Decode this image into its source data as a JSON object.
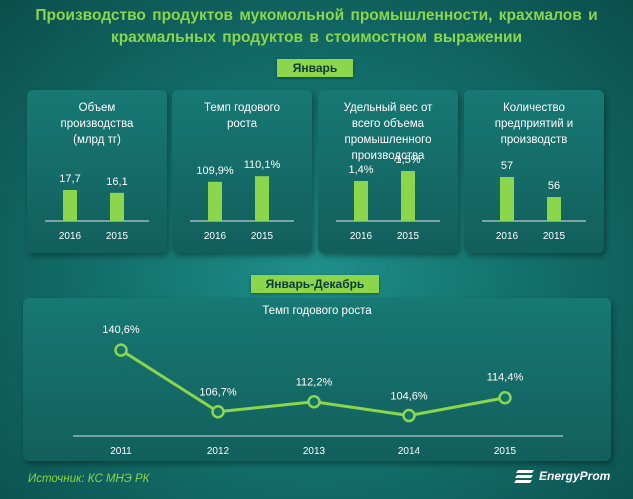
{
  "header": {
    "title_line1": "Производство продуктов мукомольной промышленности, крахмалов и",
    "title_line2": "крахмальных продуктов в стоимостном выражении"
  },
  "section_january": {
    "label": "Январь"
  },
  "section_year": {
    "label": "Январь-Декабрь"
  },
  "colors": {
    "accent": "#8bd64a",
    "bar": "#8bd64a",
    "background": "#13716d"
  },
  "chart_data": [
    {
      "type": "bar",
      "title_lines": [
        "Объем",
        "производства",
        "(млрд тг)"
      ],
      "categories": [
        "2016",
        "2015"
      ],
      "values": [
        17.7,
        16.1
      ],
      "labels": [
        "17,7",
        "16,1"
      ],
      "ylim": [
        0,
        40
      ]
    },
    {
      "type": "bar",
      "title_lines": [
        "Темп годового",
        "роста"
      ],
      "categories": [
        "2016",
        "2015"
      ],
      "values": [
        109.9,
        110.1
      ],
      "labels": [
        "109,9%",
        "110,1%"
      ],
      "ylim": [
        108.5,
        111
      ]
    },
    {
      "type": "bar",
      "title_lines": [
        "Удельный вес от",
        "всего объема",
        "промышленного",
        "производства"
      ],
      "categories": [
        "2016",
        "2015"
      ],
      "values": [
        1.4,
        1.5
      ],
      "labels": [
        "1,4%",
        "1,5%"
      ],
      "ylim": [
        1,
        1.7
      ]
    },
    {
      "type": "bar",
      "title_lines": [
        "Количество",
        "предприятий и",
        "производств"
      ],
      "categories": [
        "2016",
        "2015"
      ],
      "values": [
        57,
        56
      ],
      "labels": [
        "57",
        "56"
      ],
      "ylim": [
        54.8,
        58.3
      ]
    },
    {
      "type": "line",
      "title": "Темп годового роста",
      "categories": [
        "2011",
        "2012",
        "2013",
        "2014",
        "2015"
      ],
      "values": [
        140.6,
        106.7,
        112.2,
        104.6,
        114.4
      ],
      "labels": [
        "140,6%",
        "106,7%",
        "112,2%",
        "104,6%",
        "114,4%"
      ],
      "ylim": [
        95,
        150
      ]
    }
  ],
  "footer": {
    "source": "Источник: КС МНЭ РК",
    "logo_text": "EnergyProm"
  }
}
